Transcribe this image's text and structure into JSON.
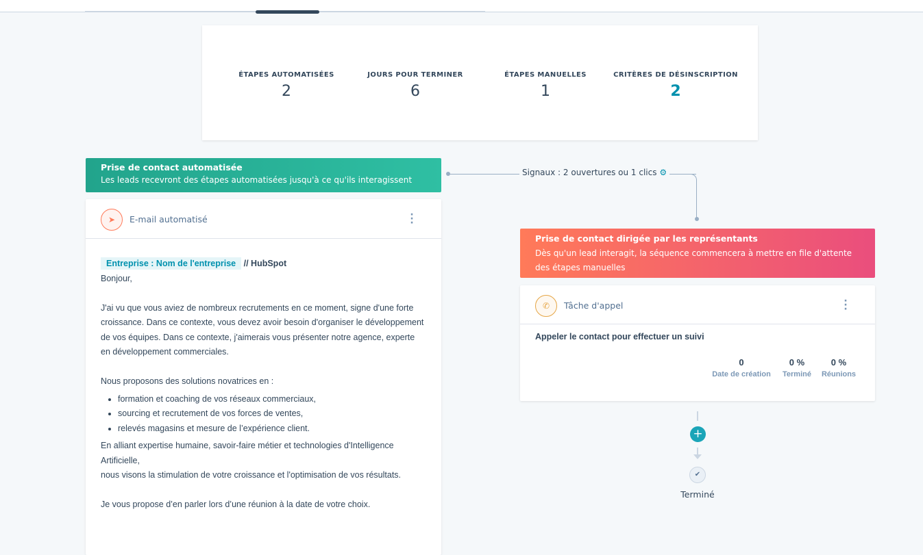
{
  "stats": [
    {
      "label": "ÉTAPES AUTOMATISÉES",
      "value": "2"
    },
    {
      "label": "JOURS POUR TERMINER",
      "value": "6"
    },
    {
      "label": "ÉTAPES MANUELLES",
      "value": "1"
    },
    {
      "label": "CRITÈRES DE DÉSINSCRIPTION",
      "value": "2"
    }
  ],
  "auto": {
    "title": "Prise de contact automatisée",
    "desc": "Les leads recevront des étapes automatisées jusqu'à ce qu'ils interagissent"
  },
  "signal": {
    "text": "Signaux : 2 ouvertures ou 1 clics",
    "icon": "gear-icon"
  },
  "email": {
    "title": "E-mail automatisé",
    "token": "Entreprise : Nom de l'entreprise",
    "suffix": "// HubSpot",
    "greeting": "Bonjour,",
    "p1": "J'ai vu que vous aviez de nombreux recrutements en ce moment, signe d'une forte croissance. Dans ce contexte, vous devez avoir besoin d'organiser le développement de vos équipes. Dans ce contexte, j'aimerais vous présenter notre agence, experte en développement commerciales.",
    "p2": "Nous proposons des solutions novatrices en :",
    "bullets": [
      "formation et coaching de vos réseaux commerciaux,",
      "sourcing et recrutement de vos forces de ventes,",
      "relevés magasins et mesure de l’expérience client."
    ],
    "p3a": "En alliant expertise humaine, savoir-faire métier et technologies d'Intelligence Artificielle,",
    "p3b": "nous visons la stimulation de votre croissance et l'optimisation de vos résultats.",
    "p4": "Je vous propose d’en parler lors d’une réunion à la date de votre choix."
  },
  "manual": {
    "title": "Prise de contact dirigée par les représentants",
    "desc": "Dès qu'un lead interagit, la séquence commencera à mettre en file d'attente des étapes manuelles"
  },
  "call": {
    "title": "Tâche d'appel",
    "task": "Appeler le contact pour effectuer un suivi",
    "metrics": [
      {
        "value": "0",
        "label": "Date de création"
      },
      {
        "value": "0 %",
        "label": "Terminé"
      },
      {
        "value": "0 %",
        "label": "Réunions"
      }
    ]
  },
  "end": {
    "label": "Terminé"
  },
  "colors": {
    "accent": "#0091ae",
    "auto_banner": "#2fbfa3",
    "manual_banner": "#ff7a59"
  }
}
